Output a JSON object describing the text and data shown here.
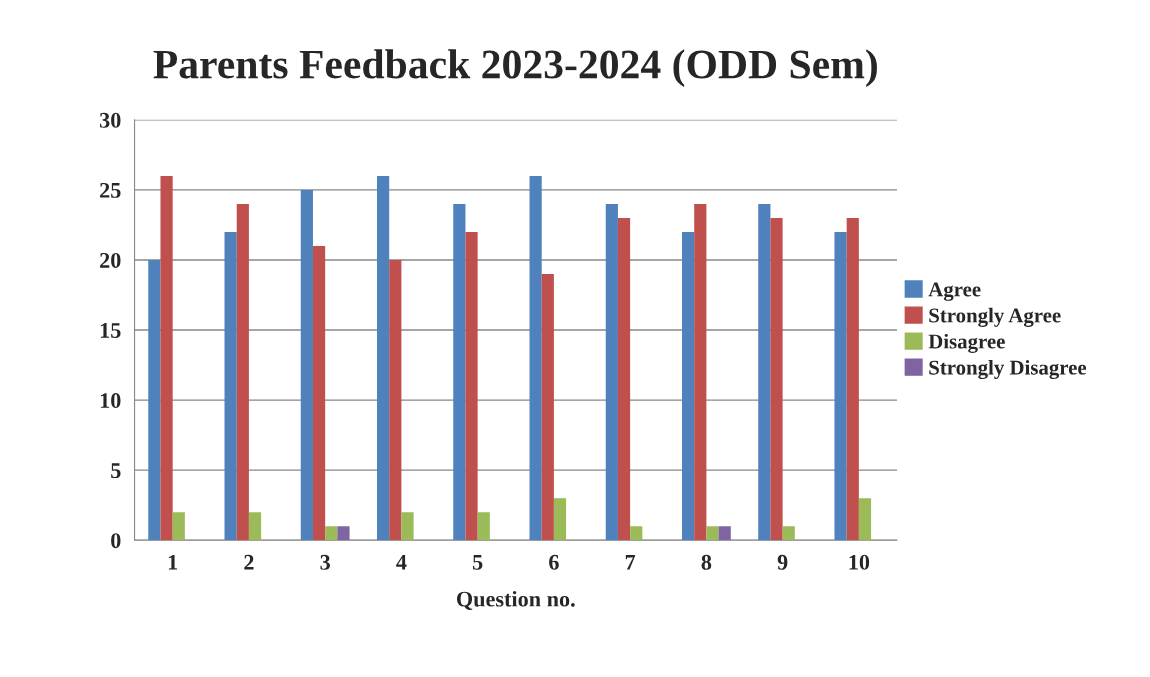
{
  "chart_data": {
    "type": "bar",
    "title": "Parents Feedback 2023-2024 (ODD Sem)",
    "xlabel": "Question no.",
    "categories": [
      "1",
      "2",
      "3",
      "4",
      "5",
      "6",
      "7",
      "8",
      "9",
      "10"
    ],
    "series": [
      {
        "name": "Agree",
        "color": "#4f81bd",
        "values": [
          20,
          22,
          25,
          26,
          24,
          26,
          24,
          22,
          24,
          22
        ]
      },
      {
        "name": "Strongly Agree",
        "color": "#c0504d",
        "values": [
          26,
          24,
          21,
          20,
          22,
          19,
          23,
          24,
          23,
          23
        ]
      },
      {
        "name": "Disagree",
        "color": "#9bbb59",
        "values": [
          2,
          2,
          1,
          2,
          2,
          3,
          1,
          1,
          1,
          3
        ]
      },
      {
        "name": "Strongly Disagree",
        "color": "#8064a2",
        "values": [
          0,
          0,
          1,
          0,
          0,
          0,
          0,
          1,
          0,
          0
        ]
      }
    ],
    "ylim": [
      0,
      30
    ],
    "yticks": [
      0,
      5,
      10,
      15,
      20,
      25,
      30
    ],
    "grid": "y",
    "legend": "right"
  }
}
